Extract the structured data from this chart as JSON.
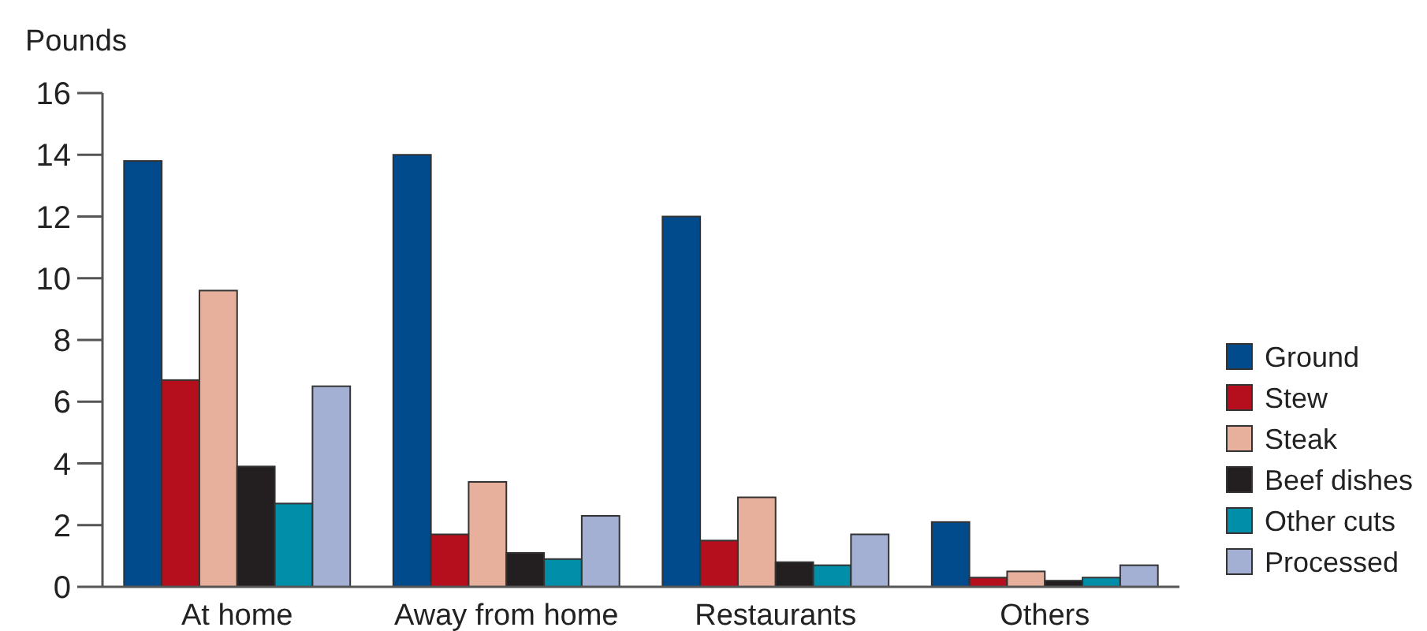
{
  "chart_data": {
    "type": "bar",
    "ylabel": "Pounds",
    "categories": [
      "At home",
      "Away from home",
      "Restaurants",
      "Others"
    ],
    "series": [
      {
        "name": "Ground",
        "color": "#014a8c",
        "values": [
          13.8,
          14.0,
          12.0,
          2.1
        ]
      },
      {
        "name": "Stew",
        "color": "#b50f1e",
        "values": [
          6.7,
          1.7,
          1.5,
          0.3
        ]
      },
      {
        "name": "Steak",
        "color": "#e7b09c",
        "values": [
          9.6,
          3.4,
          2.9,
          0.5
        ]
      },
      {
        "name": "Beef dishes",
        "color": "#231f20",
        "values": [
          3.9,
          1.1,
          0.8,
          0.2
        ]
      },
      {
        "name": "Other cuts",
        "color": "#008ea8",
        "values": [
          2.7,
          0.9,
          0.7,
          0.3
        ]
      },
      {
        "name": "Processed",
        "color": "#a3b0d3",
        "values": [
          6.5,
          2.3,
          1.7,
          0.7
        ]
      }
    ],
    "ylim": [
      0,
      16
    ],
    "yticks": [
      0,
      2,
      4,
      6,
      8,
      10,
      12,
      14,
      16
    ],
    "legend": "right"
  }
}
